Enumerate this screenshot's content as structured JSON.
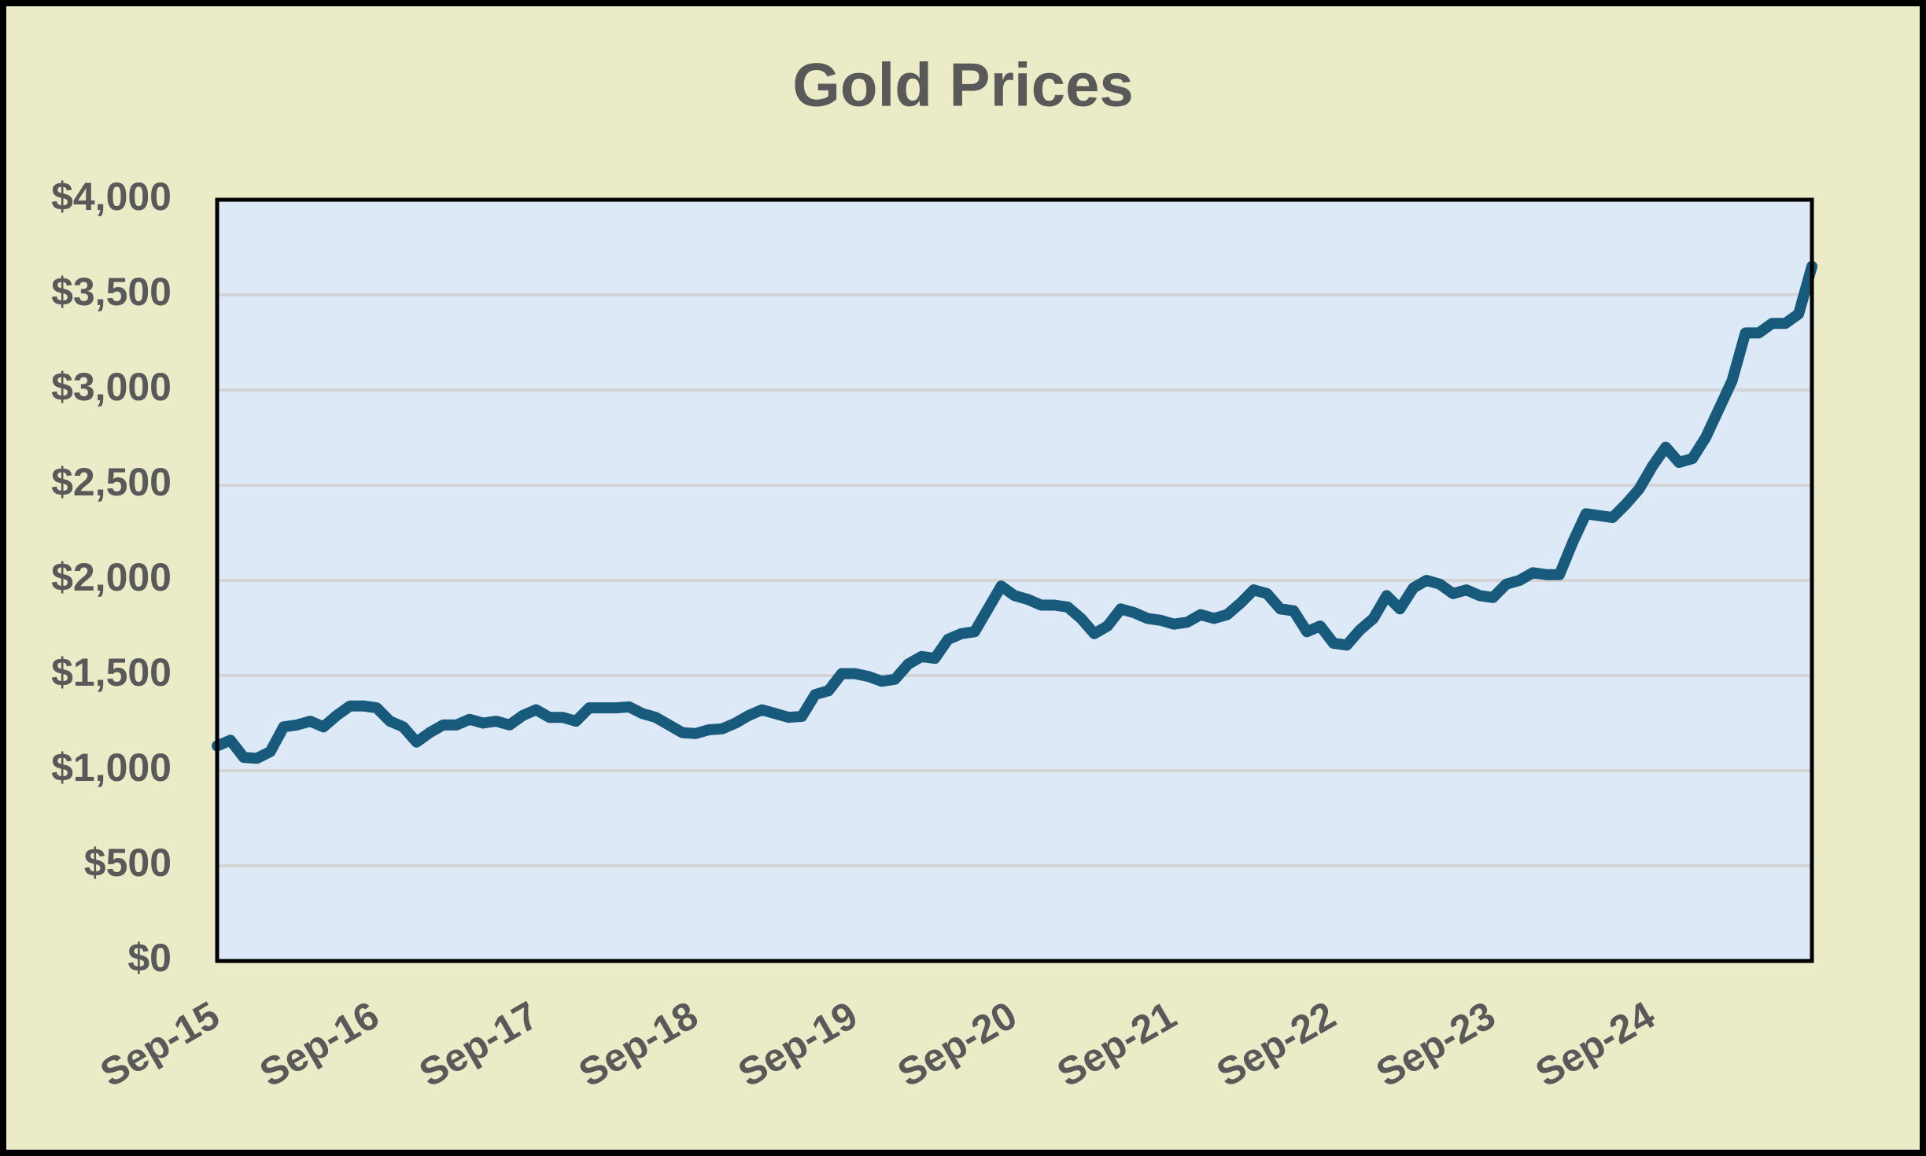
{
  "chart_data": {
    "type": "line",
    "title": "Gold Prices",
    "categories": [
      "Sep-15",
      null,
      null,
      null,
      null,
      null,
      null,
      null,
      null,
      null,
      null,
      null,
      "Sep-16",
      null,
      null,
      null,
      null,
      null,
      null,
      null,
      null,
      null,
      null,
      null,
      "Sep-17",
      null,
      null,
      null,
      null,
      null,
      null,
      null,
      null,
      null,
      null,
      null,
      "Sep-18",
      null,
      null,
      null,
      null,
      null,
      null,
      null,
      null,
      null,
      null,
      null,
      "Sep-19",
      null,
      null,
      null,
      null,
      null,
      null,
      null,
      null,
      null,
      null,
      null,
      "Sep-20",
      null,
      null,
      null,
      null,
      null,
      null,
      null,
      null,
      null,
      null,
      null,
      "Sep-21",
      null,
      null,
      null,
      null,
      null,
      null,
      null,
      null,
      null,
      null,
      null,
      "Sep-22",
      null,
      null,
      null,
      null,
      null,
      null,
      null,
      null,
      null,
      null,
      null,
      "Sep-23",
      null,
      null,
      null,
      null,
      null,
      null,
      null,
      null,
      null,
      null,
      null,
      "Sep-24",
      null,
      null,
      null,
      null,
      null,
      null,
      null,
      null,
      null,
      null,
      null,
      null
    ],
    "values": [
      1130,
      1160,
      1070,
      1065,
      1100,
      1230,
      1240,
      1260,
      1230,
      1290,
      1340,
      1340,
      1330,
      1260,
      1230,
      1150,
      1200,
      1240,
      1240,
      1270,
      1250,
      1260,
      1240,
      1290,
      1320,
      1280,
      1280,
      1260,
      1330,
      1330,
      1330,
      1335,
      1300,
      1280,
      1240,
      1200,
      1195,
      1215,
      1220,
      1250,
      1290,
      1320,
      1300,
      1280,
      1285,
      1400,
      1420,
      1510,
      1510,
      1495,
      1470,
      1480,
      1560,
      1600,
      1590,
      1690,
      1720,
      1730,
      1850,
      1970,
      1920,
      1900,
      1870,
      1870,
      1860,
      1800,
      1720,
      1760,
      1850,
      1830,
      1800,
      1790,
      1770,
      1780,
      1820,
      1800,
      1820,
      1880,
      1950,
      1930,
      1850,
      1840,
      1730,
      1760,
      1670,
      1660,
      1740,
      1800,
      1920,
      1850,
      1960,
      2000,
      1980,
      1930,
      1950,
      1920,
      1910,
      1980,
      2000,
      2040,
      2030,
      2030,
      2200,
      2350,
      2340,
      2330,
      2400,
      2480,
      2600,
      2700,
      2620,
      2640,
      2750,
      2900,
      3050,
      3300,
      3300,
      3350,
      3350,
      3400,
      3650
    ],
    "color": "#175a7c",
    "ylim": [
      0,
      4000
    ],
    "yticks": [
      {
        "value": 0,
        "label": "$0"
      },
      {
        "value": 500,
        "label": "$500"
      },
      {
        "value": 1000,
        "label": "$1,000"
      },
      {
        "value": 1500,
        "label": "$1,500"
      },
      {
        "value": 2000,
        "label": "$2,000"
      },
      {
        "value": 2500,
        "label": "$2,500"
      },
      {
        "value": 3000,
        "label": "$3,000"
      },
      {
        "value": 3500,
        "label": "$3,500"
      },
      {
        "value": 4000,
        "label": "$4,000"
      }
    ],
    "grid": true
  }
}
